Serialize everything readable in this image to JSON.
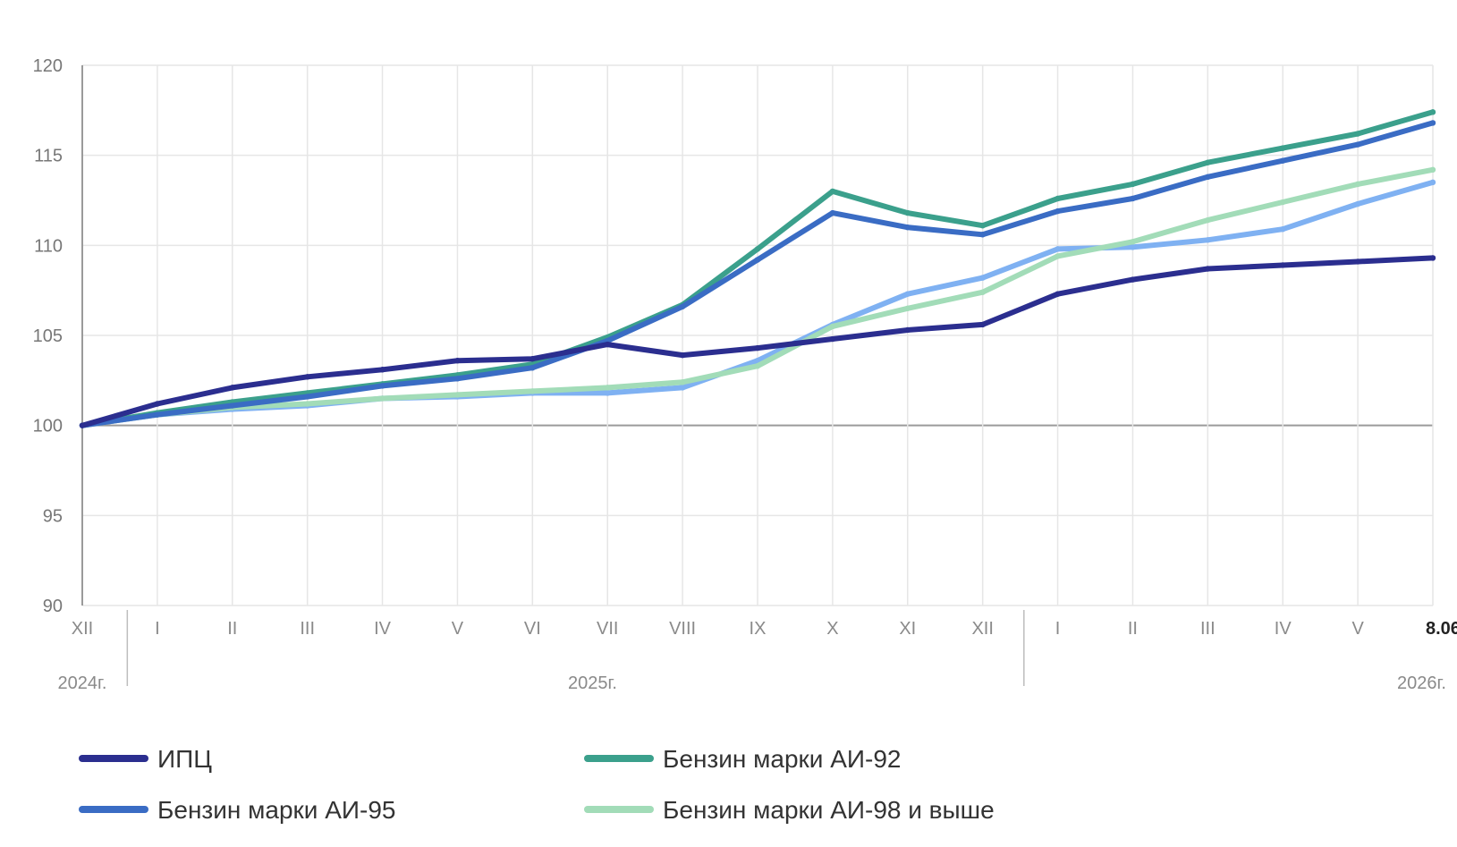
{
  "chart_data": {
    "type": "line",
    "title": "",
    "xlabel": "",
    "ylabel": "",
    "ylim": [
      90,
      120
    ],
    "yticks": [
      "90",
      "95",
      "100",
      "105",
      "110",
      "115",
      "120"
    ],
    "baseline": 100,
    "grid": true,
    "legend_position": "bottom",
    "categories": [
      "XII",
      "I",
      "II",
      "III",
      "IV",
      "V",
      "VI",
      "VII",
      "VIII",
      "IX",
      "X",
      "XI",
      "XII",
      "I",
      "II",
      "III",
      "IV",
      "V",
      "8.06"
    ],
    "year_labels": [
      "2024г.",
      "2025г.",
      "2026г."
    ],
    "series": [
      {
        "name": "ИПЦ",
        "color": "#2b2e8f",
        "values": [
          100,
          101.2,
          102.1,
          102.7,
          103.1,
          103.6,
          103.7,
          104.5,
          103.9,
          104.3,
          104.8,
          105.3,
          105.6,
          107.3,
          108.1,
          108.7,
          108.9,
          109.1,
          109.3
        ]
      },
      {
        "name": "Бензин марки АИ-95",
        "color": "#3a6cc4",
        "values": [
          100,
          100.6,
          101.1,
          101.6,
          102.2,
          102.6,
          103.2,
          104.7,
          106.6,
          109.2,
          111.8,
          111.0,
          110.6,
          111.9,
          112.6,
          113.8,
          114.7,
          115.6,
          116.8
        ]
      },
      {
        "name": "Бензин марки АИ-92",
        "color": "#3ba08c",
        "values": [
          100,
          100.7,
          101.3,
          101.8,
          102.3,
          102.8,
          103.4,
          104.9,
          106.7,
          109.8,
          113.0,
          111.8,
          111.1,
          112.6,
          113.4,
          114.6,
          115.4,
          116.2,
          117.4
        ]
      },
      {
        "name": "Бензин марки АИ-98 и выше",
        "color": "#a2dcb8",
        "values": [
          100,
          100.6,
          101.0,
          101.2,
          101.5,
          101.7,
          101.9,
          102.1,
          102.4,
          103.3,
          105.5,
          106.5,
          107.4,
          109.4,
          110.2,
          111.4,
          112.4,
          113.4,
          114.2
        ]
      },
      {
        "name": "",
        "color": "#7fb1f2",
        "values": [
          100,
          100.6,
          100.9,
          101.1,
          101.5,
          101.6,
          101.8,
          101.8,
          102.1,
          103.6,
          105.6,
          107.3,
          108.2,
          109.8,
          109.9,
          110.3,
          110.9,
          112.3,
          113.5
        ]
      }
    ]
  },
  "legend": [
    {
      "label": "ИПЦ",
      "color": "#2b2e8f"
    },
    {
      "label": "Бензин марки АИ-92",
      "color": "#3ba08c"
    },
    {
      "label": "Бензин марки АИ-95",
      "color": "#3a6cc4"
    },
    {
      "label": "Бензин марки АИ-98 и выше",
      "color": "#a2dcb8"
    }
  ]
}
